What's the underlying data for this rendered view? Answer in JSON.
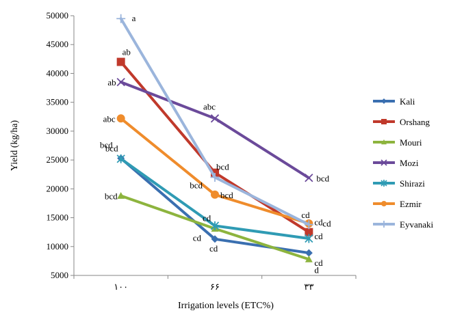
{
  "chart_data": {
    "type": "line",
    "xlabel": "Irrigation levels (ETC%)",
    "ylabel": "Yield (kg/ha)",
    "categories": [
      "۱۰۰",
      "۶۶",
      "۳۳"
    ],
    "ylim": [
      5000,
      50000
    ],
    "yticks": [
      "5000",
      "10000",
      "15000",
      "20000",
      "25000",
      "30000",
      "35000",
      "40000",
      "45000",
      "50000"
    ],
    "legend_position": "right",
    "grid": false,
    "series": [
      {
        "name": "Kali",
        "color": "#3a6fb0",
        "marker": "diamond",
        "values": [
          25300,
          11300,
          8900
        ],
        "letters": [
          "bcd",
          "cd",
          "cd"
        ]
      },
      {
        "name": "Orshang",
        "color": "#c0392b",
        "marker": "square",
        "values": [
          42000,
          22800,
          12500
        ],
        "letters": [
          "ab",
          "bcd",
          "cd"
        ]
      },
      {
        "name": "Mouri",
        "color": "#8db43e",
        "marker": "triangle",
        "values": [
          18800,
          13100,
          7800
        ],
        "letters": [
          "bcd",
          "cd",
          "d"
        ]
      },
      {
        "name": "Mozi",
        "color": "#6b4a9a",
        "marker": "x",
        "values": [
          38500,
          32200,
          21900
        ],
        "letters": [
          "ab",
          "abc",
          "bcd"
        ]
      },
      {
        "name": "Shirazi",
        "color": "#2f9bb4",
        "marker": "star",
        "values": [
          25200,
          13600,
          11400
        ],
        "letters": [
          "bcd",
          "cd",
          "cd"
        ]
      },
      {
        "name": "Ezmir",
        "color": "#ef8c2c",
        "marker": "circle",
        "values": [
          32200,
          19000,
          14000
        ],
        "letters": [
          "abc",
          "bcd",
          "cd"
        ]
      },
      {
        "name": "Eyvanaki",
        "color": "#9bb5dc",
        "marker": "plus",
        "values": [
          49500,
          22000,
          13800
        ],
        "letters": [
          "a",
          "bcd",
          "cd"
        ]
      }
    ]
  }
}
